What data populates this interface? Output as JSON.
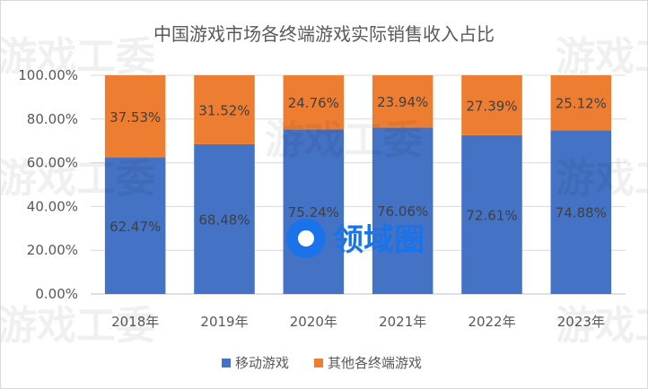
{
  "chart_data": {
    "type": "bar",
    "stacked": true,
    "title": "中国游戏市场各终端游戏实际销售收入占比",
    "categories": [
      "2018年",
      "2019年",
      "2020年",
      "2021年",
      "2022年",
      "2023年"
    ],
    "series": [
      {
        "name": "移动游戏",
        "color": "#4472c4",
        "values": [
          62.47,
          68.48,
          75.24,
          76.06,
          72.61,
          74.88
        ],
        "labels": [
          "62.47%",
          "68.48%",
          "75.24%",
          "76.06%",
          "72.61%",
          "74.88%"
        ]
      },
      {
        "name": "其他各终端游戏",
        "color": "#ed7d31",
        "values": [
          37.53,
          31.52,
          24.76,
          23.94,
          27.39,
          25.12
        ],
        "labels": [
          "37.53%",
          "31.52%",
          "24.76%",
          "23.94%",
          "27.39%",
          "25.12%"
        ]
      }
    ],
    "ylim": [
      0,
      100
    ],
    "yticks": [
      "0.00%",
      "20.00%",
      "40.00%",
      "60.00%",
      "80.00%",
      "100.00%"
    ],
    "grid": true,
    "legend_position": "bottom"
  },
  "watermark": {
    "text": "游戏工委",
    "logo_text": "领域圈"
  }
}
